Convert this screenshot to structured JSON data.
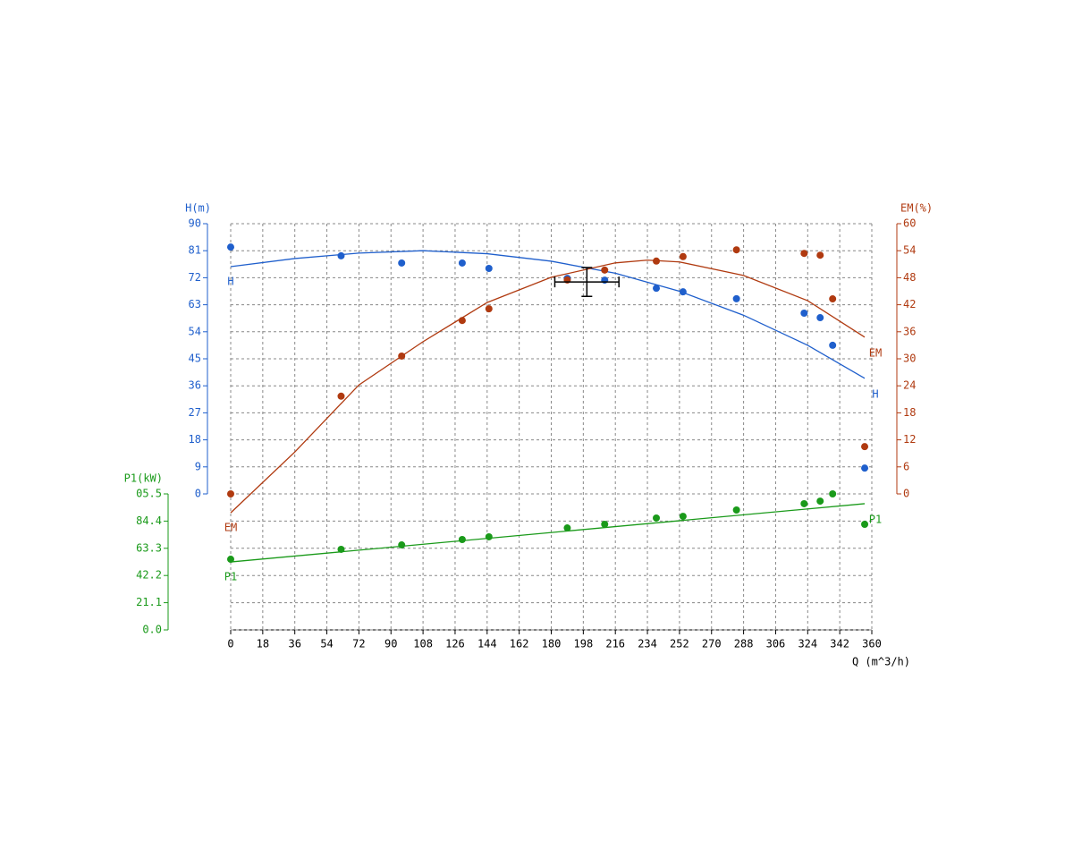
{
  "chart_data": {
    "type": "pump-curve",
    "x_label": "Q (m^3/h)",
    "xlim": [
      0,
      360
    ],
    "xticks": [
      0,
      18,
      36,
      54,
      72,
      90,
      108,
      126,
      144,
      162,
      180,
      198,
      216,
      234,
      252,
      270,
      288,
      306,
      324,
      342,
      360
    ],
    "grid": true,
    "series": [
      {
        "name": "H",
        "axis_title": "H(m)",
        "color": "#1f5fcc",
        "ylim": [
          0,
          90
        ],
        "yticks": [
          0,
          9,
          18,
          27,
          36,
          45,
          54,
          63,
          72,
          81,
          90
        ],
        "x": [
          0,
          62,
          96,
          130,
          145,
          189,
          210,
          239,
          254,
          284,
          322,
          331,
          338,
          356
        ],
        "values": [
          82.2,
          79.3,
          76.9,
          76.9,
          75.1,
          71.8,
          71.2,
          68.5,
          67.3,
          65.0,
          60.2,
          58.7,
          49.5,
          8.6
        ],
        "curve_x": [
          0,
          36,
          72,
          108,
          144,
          180,
          216,
          252,
          288,
          324,
          356
        ],
        "curve_values": [
          75.7,
          78.4,
          80.2,
          81.0,
          80.0,
          77.5,
          73.5,
          67.5,
          59.5,
          49.5,
          38.5
        ]
      },
      {
        "name": "EM",
        "axis_title": "EM(%)",
        "color": "#b03a10",
        "ylim": [
          0,
          60
        ],
        "yticks": [
          0,
          6,
          12,
          18,
          24,
          30,
          36,
          42,
          48,
          54,
          60
        ],
        "x": [
          0,
          62,
          96,
          130,
          145,
          189,
          210,
          239,
          254,
          284,
          322,
          331,
          338,
          356
        ],
        "values": [
          0,
          21.7,
          30.6,
          38.5,
          41.1,
          47.5,
          49.7,
          51.7,
          52.7,
          54.2,
          53.4,
          53.0,
          43.3,
          10.5
        ],
        "curve_x": [
          0,
          36,
          72,
          108,
          144,
          180,
          216,
          234,
          252,
          288,
          324,
          356
        ],
        "curve_values": [
          -4.2,
          9.3,
          24.2,
          33.8,
          42.5,
          48.1,
          51.3,
          51.9,
          51.5,
          48.5,
          42.9,
          34.8
        ]
      },
      {
        "name": "P1",
        "axis_title": "P1(kW)",
        "color": "#1a9a1a",
        "ylim": [
          0,
          105.5
        ],
        "yticks": [
          {
            "value": 0,
            "label": "0.0"
          },
          21.1,
          42.2,
          63.3,
          84.4,
          {
            "value": 105.5,
            "label": "05.5"
          }
        ],
        "x": [
          0,
          62,
          96,
          130,
          145,
          189,
          210,
          239,
          254,
          284,
          322,
          331,
          338,
          356
        ],
        "values": [
          54.8,
          62.5,
          65.9,
          70.1,
          72.2,
          79.1,
          81.9,
          86.8,
          88.1,
          93.0,
          97.9,
          99.9,
          105.5,
          81.9
        ],
        "curve_x": [
          0,
          356
        ],
        "curve_values": [
          52.7,
          97.9
        ]
      }
    ],
    "duty_point": {
      "x": 200,
      "y": 70.6,
      "xerr": 18,
      "yerr": 4.8
    }
  }
}
